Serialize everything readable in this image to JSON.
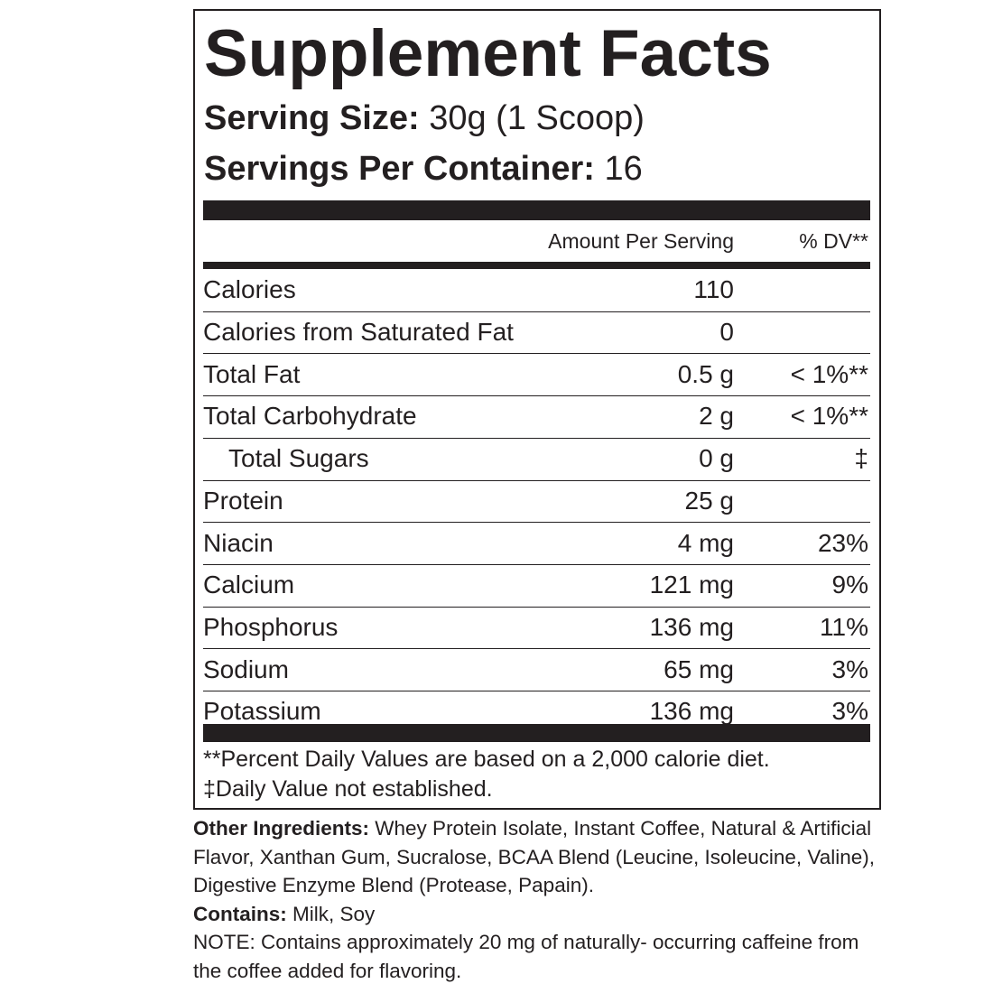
{
  "header": {
    "title": "Supplement Facts",
    "serving_size_label": "Serving Size:",
    "serving_size": "30g (1 Scoop)",
    "servings_label": "Servings Per Container:",
    "servings": "16"
  },
  "table": {
    "columns": [
      "Amount Per Serving",
      "% DV**"
    ],
    "rows": [
      [
        "Calories",
        "110"
      ],
      [
        "Calories from Saturated Fat",
        "0"
      ],
      [
        "Total Fat",
        "0.5 g",
        "< 1%**"
      ],
      [
        "Total Carbohydrate",
        "2 g",
        "< 1%**"
      ],
      [
        "Total Sugars",
        "0 g",
        "‡"
      ],
      [
        "Protein",
        "25 g"
      ],
      [
        "Niacin",
        "4 mg",
        "23%"
      ],
      [
        "Calcium",
        "121 mg",
        "9%"
      ],
      [
        "Phosphorus",
        "136 mg",
        "11%"
      ],
      [
        "Sodium",
        "65 mg",
        "3%"
      ],
      [
        "Potassium",
        "136 mg",
        "3%"
      ]
    ],
    "indented_rows": [
      4
    ]
  },
  "footnotes": [
    "**Percent Daily Values are based on a 2,000 calorie diet.",
    "‡Daily Value not established."
  ],
  "ingredients": {
    "other_label": "Other Ingredients:",
    "other": "Whey Protein Isolate, Instant Coffee, Natural & Artificial Flavor, Xanthan Gum, Sucralose, BCAA Blend (Leucine, Isoleucine, Valine), Digestive Enzyme Blend (Protease, Papain).",
    "contains_label": "Contains:",
    "contains": "Milk, Soy",
    "note": "NOTE: Contains approximately 20 mg of naturally- occurring caffeine from the coffee added for flavoring."
  }
}
